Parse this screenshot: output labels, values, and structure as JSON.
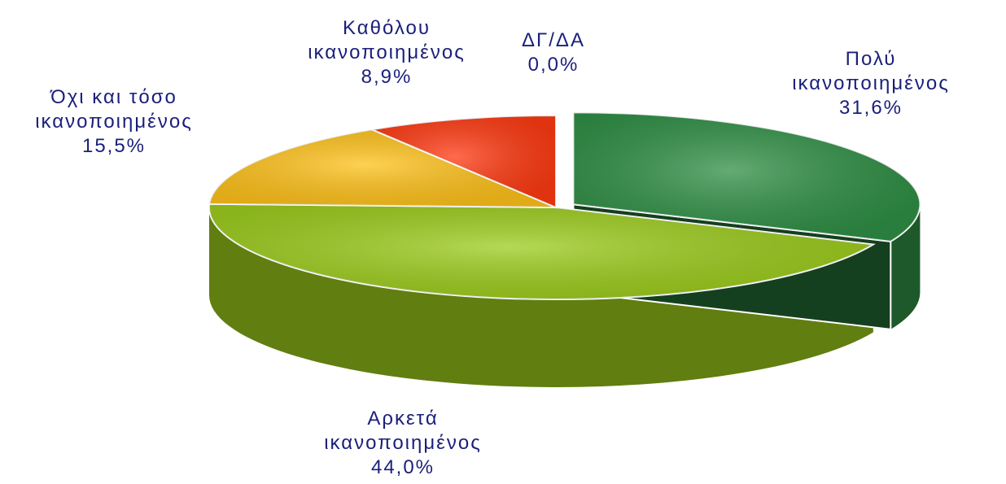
{
  "chart_data": {
    "type": "pie",
    "categories": [
      "Πολύ ικανοποιημένος",
      "Αρκετά ικανοποιημένος",
      "Όχι και τόσο ικανοποιημένος",
      "Καθόλου ικανοποιημένος",
      "ΔΓ/ΔΑ"
    ],
    "values": [
      31.6,
      44.0,
      15.5,
      8.9,
      0.0
    ],
    "value_labels": [
      "31,6%",
      "44,0%",
      "15,5%",
      "8,9%",
      "0,0%"
    ],
    "colors": [
      "#2f8f45",
      "#9ccc1c",
      "#ffc21a",
      "#ff3a12",
      "#ffffff"
    ],
    "explode": [
      0.06,
      0,
      0,
      0,
      0
    ]
  }
}
